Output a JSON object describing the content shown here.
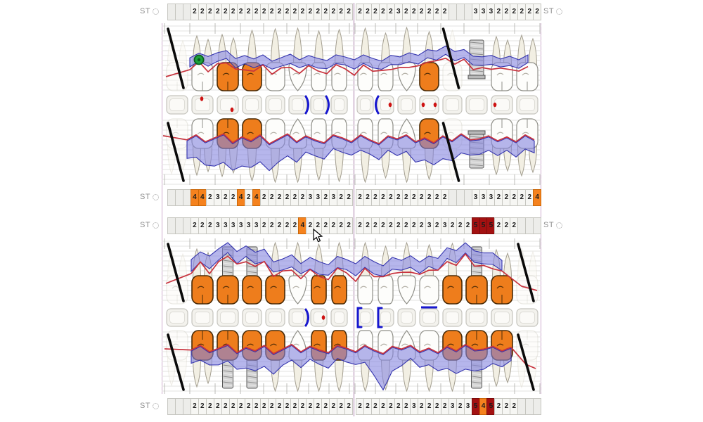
{
  "labels": {
    "st": "ST"
  },
  "colors": {
    "depth_normal_bg": "#F6F6F3",
    "depth_empty_bg": "#EDEDEA",
    "depth_highlight_orange": "#F5821E",
    "depth_highlight_dark_red": "#A31111",
    "crown_orange": "#EE7D1C",
    "gingiva_line_red": "#C8333E",
    "pocket_band_fill": "#8686E0",
    "pocket_band_stroke": "#3434AE",
    "bracket_blue": "#1717CF",
    "caries_dot_red": "#CE1212",
    "green_marker": "#1CA23B",
    "missing_tooth_mark": "#0A0A0A",
    "implant_metal": "#D4D4D4"
  },
  "depth_rows": {
    "upper_a": {
      "cells": [
        "",
        "",
        "",
        "2",
        "2",
        "2",
        "2",
        "2",
        "2",
        "2",
        "2",
        "2",
        "2",
        "2",
        "2",
        "2",
        "2",
        "2",
        "2",
        "2",
        "2",
        "2",
        "2",
        "2",
        "2",
        "2",
        "2",
        "2",
        "2",
        "3",
        "2",
        "2",
        "2",
        "2",
        "2",
        "2",
        "",
        "",
        "",
        "3",
        "3",
        "3",
        "2",
        "2",
        "2",
        "2",
        "2",
        "2"
      ]
    },
    "upper_b": {
      "cells": [
        "",
        "",
        "",
        "4o",
        "4o",
        "2",
        "3",
        "2",
        "2",
        "4o",
        "2",
        "4o",
        "2",
        "2",
        "2",
        "2",
        "2",
        "2",
        "3",
        "3",
        "2",
        "3",
        "2",
        "2",
        "2",
        "2",
        "2",
        "2",
        "2",
        "2",
        "2",
        "2",
        "2",
        "2",
        "2",
        "2",
        "",
        "",
        "",
        "3",
        "3",
        "3",
        "2",
        "2",
        "2",
        "2",
        "2",
        "4o"
      ]
    },
    "lower_a": {
      "cells": [
        "",
        "",
        "",
        "2",
        "2",
        "2",
        "3",
        "3",
        "3",
        "3",
        "3",
        "3",
        "2",
        "2",
        "2",
        "2",
        "2",
        "4o",
        "2",
        "2",
        "2",
        "2",
        "2",
        "2",
        "2",
        "2",
        "2",
        "2",
        "2",
        "2",
        "2",
        "2",
        "2",
        "3",
        "2",
        "3",
        "2",
        "2",
        "2",
        "5r",
        "5r",
        "5r",
        "2",
        "2",
        "2",
        "",
        "",
        ""
      ]
    },
    "lower_b": {
      "cells": [
        "",
        "",
        "",
        "2",
        "2",
        "2",
        "2",
        "2",
        "2",
        "2",
        "2",
        "2",
        "2",
        "2",
        "2",
        "2",
        "2",
        "2",
        "2",
        "2",
        "2",
        "2",
        "2",
        "2",
        "2",
        "2",
        "2",
        "2",
        "2",
        "2",
        "2",
        "3",
        "2",
        "2",
        "2",
        "2",
        "3",
        "2",
        "3",
        "5r",
        "4o",
        "5r",
        "2",
        "2",
        "2",
        "",
        "",
        ""
      ]
    }
  },
  "teeth": {
    "upper": [
      {
        "type": "molar",
        "status": "missing"
      },
      {
        "type": "molar",
        "status": "normal",
        "marker": "green-circle"
      },
      {
        "type": "molar",
        "status": "crown"
      },
      {
        "type": "premolar",
        "status": "crown"
      },
      {
        "type": "premolar",
        "status": "normal"
      },
      {
        "type": "canine",
        "status": "normal"
      },
      {
        "type": "incisor",
        "status": "normal"
      },
      {
        "type": "incisor",
        "status": "normal"
      },
      {
        "type": "incisor",
        "status": "normal"
      },
      {
        "type": "incisor",
        "status": "normal"
      },
      {
        "type": "canine",
        "status": "normal"
      },
      {
        "type": "premolar",
        "status": "crown"
      },
      {
        "type": "premolar",
        "status": "missing"
      },
      {
        "type": "molar",
        "status": "implant"
      },
      {
        "type": "molar",
        "status": "normal"
      },
      {
        "type": "molar",
        "status": "normal"
      }
    ],
    "lower": [
      {
        "type": "molar",
        "status": "missing"
      },
      {
        "type": "molar",
        "status": "crown"
      },
      {
        "type": "molar",
        "status": "implant-crown"
      },
      {
        "type": "premolar",
        "status": "implant-crown"
      },
      {
        "type": "premolar",
        "status": "crown"
      },
      {
        "type": "canine",
        "status": "normal"
      },
      {
        "type": "incisor",
        "status": "crown"
      },
      {
        "type": "incisor",
        "status": "crown"
      },
      {
        "type": "incisor",
        "status": "normal"
      },
      {
        "type": "incisor",
        "status": "normal"
      },
      {
        "type": "canine",
        "status": "normal"
      },
      {
        "type": "premolar",
        "status": "normal"
      },
      {
        "type": "premolar",
        "status": "crown"
      },
      {
        "type": "molar",
        "status": "implant-crown"
      },
      {
        "type": "molar",
        "status": "crown"
      },
      {
        "type": "molar",
        "status": "missing"
      }
    ]
  },
  "occlusal": {
    "upper": [
      [],
      [
        "red-dot-top"
      ],
      [
        "red-dot-bottom-right"
      ],
      [],
      [],
      [
        "bracket-right"
      ],
      [
        "bracket-right"
      ],
      [],
      [],
      [
        "bracket-left",
        "red-dot-right"
      ],
      [],
      [
        "red-dot-left",
        "red-dot-right"
      ],
      [],
      [],
      [
        "red-dot-left"
      ],
      []
    ],
    "lower": [
      [],
      [],
      [],
      [],
      [],
      [
        "bracket-right"
      ],
      [
        "red-dot-right"
      ],
      [],
      [
        "bracket-left-square"
      ],
      [
        "bracket-left-square"
      ],
      [],
      [
        "line-top"
      ],
      [],
      [],
      [],
      []
    ]
  }
}
